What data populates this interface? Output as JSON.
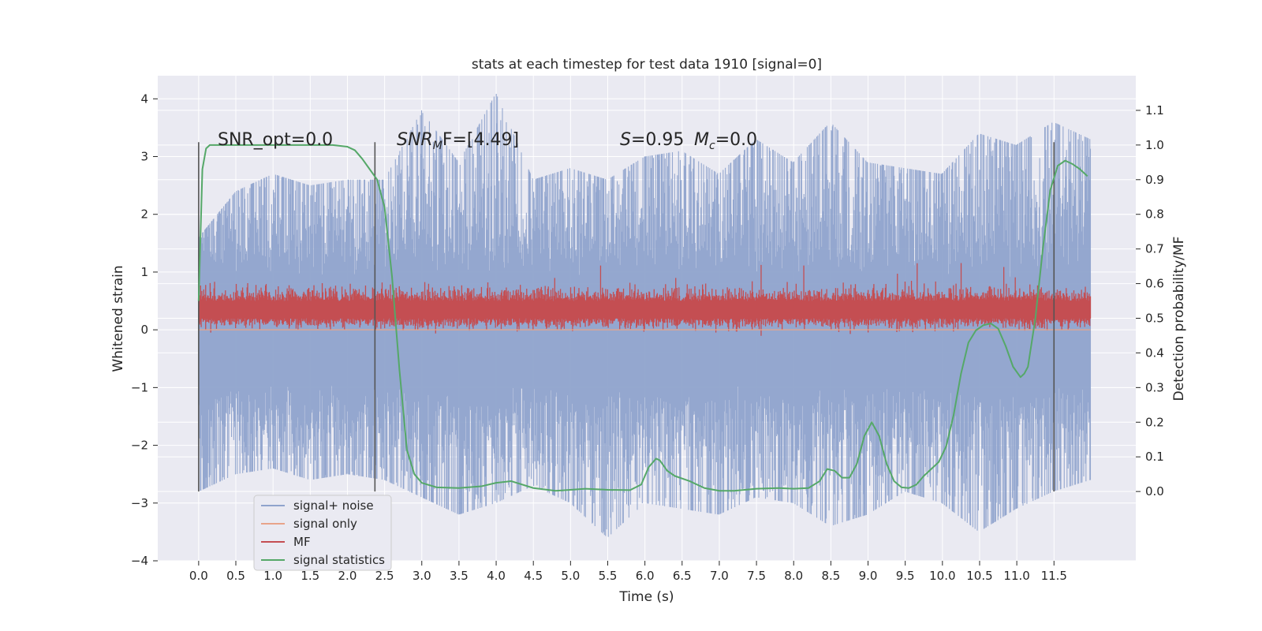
{
  "chart_data": {
    "type": "line",
    "title": "stats at each timestep for test data 1910 [signal=0]",
    "xlabel": "Time (s)",
    "ylabel": "Whitened strain",
    "y2label": "Detection probability/MF",
    "xlim": [
      -0.55,
      12.6
    ],
    "ylim": [
      -4.0,
      4.4
    ],
    "y2lim": [
      -0.2,
      1.2
    ],
    "xticks": [
      0.0,
      0.5,
      1.0,
      1.5,
      2.0,
      2.5,
      3.0,
      3.5,
      4.0,
      4.5,
      5.0,
      5.5,
      6.0,
      6.5,
      7.0,
      7.5,
      8.0,
      8.5,
      9.0,
      9.5,
      10.0,
      10.5,
      11.0,
      11.5
    ],
    "xtick_labels": [
      "0.0",
      "0.5",
      "1.0",
      "1.5",
      "2.0",
      "2.5",
      "3.0",
      "3.5",
      "4.0",
      "4.5",
      "5.0",
      "5.5",
      "6.0",
      "6.5",
      "7.0",
      "7.5",
      "8.0",
      "8.5",
      "9.0",
      "9.5",
      "10.0",
      "10.5",
      "11.0",
      "11.5"
    ],
    "yticks": [
      -4,
      -3,
      -2,
      -1,
      0,
      1,
      2,
      3,
      4
    ],
    "ytick_labels": [
      "−4",
      "−3",
      "−2",
      "−1",
      "0",
      "1",
      "2",
      "3",
      "4"
    ],
    "y2ticks": [
      0.0,
      0.1,
      0.2,
      0.3,
      0.4,
      0.5,
      0.6,
      0.7,
      0.8,
      0.9,
      1.0,
      1.1
    ],
    "y2tick_labels": [
      "0.0",
      "0.1",
      "0.2",
      "0.3",
      "0.4",
      "0.5",
      "0.6",
      "0.7",
      "0.8",
      "0.9",
      "1.0",
      "1.1"
    ],
    "grid": true,
    "legend_position": "lower-left",
    "annotations": {
      "snr_opt": "SNR_opt=0.0",
      "snr_mf_prefix": "SNR",
      "snr_mf_sub": "M",
      "snr_mf_suffix": "F=[4.49]",
      "s_label": "S",
      "s_value": "=0.95",
      "mc_label": "M",
      "mc_sub": "c",
      "mc_value": "=0.0"
    },
    "vertical_lines_x": [
      0.0,
      2.37,
      11.5
    ],
    "series": [
      {
        "name": "signal+ noise",
        "color": "#8fa3cc",
        "axis": "left",
        "x_range": [
          0.0,
          11.99
        ],
        "envelope_max": [
          1.6,
          2.4,
          2.7,
          2.5,
          2.6,
          2.6,
          3.8,
          2.9,
          4.1,
          2.6,
          2.8,
          2.6,
          3.0,
          3.1,
          2.7,
          3.3,
          2.9,
          3.6,
          2.9,
          2.8,
          2.7,
          3.4,
          3.2,
          3.6,
          3.3
        ],
        "envelope_min": [
          -2.8,
          -2.5,
          -2.4,
          -2.6,
          -2.5,
          -2.6,
          -2.9,
          -3.2,
          -3.0,
          -2.7,
          -3.0,
          -3.6,
          -3.0,
          -3.1,
          -3.2,
          -2.9,
          -3.0,
          -3.4,
          -3.2,
          -2.8,
          -3.0,
          -3.5,
          -3.1,
          -2.8,
          -2.6
        ]
      },
      {
        "name": "signal only",
        "color": "#e8a48a",
        "axis": "left",
        "x": [
          0.0,
          11.99
        ],
        "values": [
          0.0,
          0.0
        ]
      },
      {
        "name": "MF",
        "color": "#c44e52",
        "axis": "right",
        "x_range": [
          0.0,
          11.99
        ],
        "band": [
          0.5,
          0.55
        ],
        "peak_max": 0.66
      },
      {
        "name": "signal statistics",
        "color": "#55a868",
        "axis": "right",
        "x": [
          0.0,
          0.05,
          0.1,
          0.15,
          0.2,
          0.3,
          0.5,
          1.0,
          1.5,
          1.8,
          2.0,
          2.1,
          2.2,
          2.3,
          2.4,
          2.5,
          2.6,
          2.7,
          2.8,
          2.9,
          3.0,
          3.2,
          3.5,
          3.8,
          4.0,
          4.2,
          4.5,
          4.8,
          5.0,
          5.2,
          5.5,
          5.8,
          5.95,
          6.05,
          6.15,
          6.2,
          6.3,
          6.4,
          6.6,
          6.8,
          7.0,
          7.2,
          7.5,
          7.8,
          8.0,
          8.2,
          8.35,
          8.45,
          8.55,
          8.65,
          8.75,
          8.85,
          8.95,
          9.05,
          9.15,
          9.25,
          9.35,
          9.45,
          9.55,
          9.65,
          9.75,
          9.85,
          9.95,
          10.05,
          10.15,
          10.25,
          10.35,
          10.45,
          10.55,
          10.65,
          10.75,
          10.85,
          10.95,
          11.05,
          11.1,
          11.15,
          11.25,
          11.35,
          11.45,
          11.55,
          11.65,
          11.75,
          11.85,
          11.95
        ],
        "values": [
          0.55,
          0.93,
          0.99,
          1.0,
          1.0,
          1.0,
          1.0,
          1.0,
          1.0,
          1.0,
          0.995,
          0.985,
          0.96,
          0.93,
          0.9,
          0.82,
          0.62,
          0.35,
          0.12,
          0.05,
          0.025,
          0.012,
          0.01,
          0.015,
          0.025,
          0.03,
          0.01,
          0.002,
          0.005,
          0.008,
          0.005,
          0.004,
          0.02,
          0.07,
          0.095,
          0.09,
          0.06,
          0.045,
          0.03,
          0.01,
          0.002,
          0.002,
          0.008,
          0.01,
          0.008,
          0.01,
          0.03,
          0.065,
          0.06,
          0.04,
          0.04,
          0.08,
          0.16,
          0.2,
          0.16,
          0.08,
          0.03,
          0.012,
          0.01,
          0.02,
          0.045,
          0.065,
          0.085,
          0.13,
          0.22,
          0.34,
          0.43,
          0.465,
          0.48,
          0.485,
          0.47,
          0.42,
          0.36,
          0.33,
          0.34,
          0.36,
          0.5,
          0.7,
          0.87,
          0.94,
          0.955,
          0.945,
          0.93,
          0.91
        ]
      }
    ]
  }
}
